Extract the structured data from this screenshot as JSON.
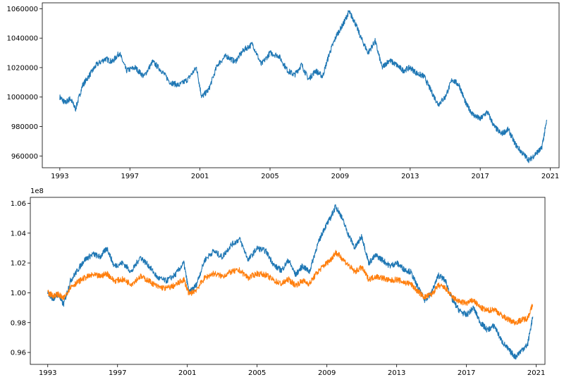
{
  "chart_data": [
    {
      "type": "line",
      "title": "",
      "xlabel": "",
      "ylabel": "",
      "x_ticks": [
        "1993",
        "1997",
        "2001",
        "2005",
        "2009",
        "2013",
        "2017",
        "2021"
      ],
      "y_ticks": [
        "960000",
        "980000",
        "1000000",
        "1020000",
        "1040000",
        "1060000"
      ],
      "xlim": [
        1992.0,
        2021.5
      ],
      "ylim": [
        952000,
        1064000
      ],
      "grid": false,
      "series": [
        {
          "color": "#1f77b4",
          "x": [
            1993.0,
            1993.3,
            1993.6,
            1993.9,
            1994.3,
            1994.7,
            1995.1,
            1995.6,
            1996.0,
            1996.4,
            1996.8,
            1997.3,
            1997.8,
            1998.3,
            1998.8,
            1999.3,
            1999.8,
            2000.3,
            2000.8,
            2001.1,
            2001.5,
            2002.0,
            2002.5,
            2003.0,
            2003.5,
            2004.0,
            2004.5,
            2005.0,
            2005.5,
            2006.0,
            2006.4,
            2006.8,
            2007.2,
            2007.6,
            2008.0,
            2008.4,
            2008.8,
            2009.2,
            2009.5,
            2009.8,
            2010.2,
            2010.6,
            2011.0,
            2011.4,
            2011.8,
            2012.2,
            2012.6,
            2013.0,
            2013.4,
            2013.8,
            2014.2,
            2014.6,
            2015.0,
            2015.4,
            2015.8,
            2016.2,
            2016.6,
            2017.0,
            2017.4,
            2017.8,
            2018.2,
            2018.6,
            2019.0,
            2019.4,
            2019.8,
            2020.2,
            2020.5,
            2020.8
          ],
          "y": [
            1000000,
            996000,
            999000,
            992000,
            1008000,
            1015000,
            1022000,
            1026000,
            1024000,
            1030000,
            1018000,
            1020000,
            1014000,
            1024000,
            1018000,
            1010000,
            1008000,
            1012000,
            1020000,
            1000000,
            1005000,
            1022000,
            1028000,
            1024000,
            1032000,
            1036000,
            1022000,
            1030000,
            1028000,
            1018000,
            1015000,
            1022000,
            1012000,
            1018000,
            1014000,
            1030000,
            1042000,
            1050000,
            1058000,
            1052000,
            1040000,
            1030000,
            1038000,
            1020000,
            1025000,
            1022000,
            1018000,
            1020000,
            1016000,
            1014000,
            1004000,
            995000,
            1000000,
            1012000,
            1008000,
            995000,
            988000,
            985000,
            990000,
            980000,
            975000,
            978000,
            968000,
            962000,
            957000,
            962000,
            965000,
            984000
          ]
        }
      ]
    },
    {
      "type": "line",
      "title": "",
      "xlabel": "",
      "ylabel": "",
      "y_offset_label": "1e8",
      "x_ticks": [
        "1993",
        "1997",
        "2001",
        "2005",
        "2009",
        "2013",
        "2017",
        "2021"
      ],
      "y_ticks": [
        "0.96",
        "0.98",
        "1.00",
        "1.02",
        "1.04",
        "1.06"
      ],
      "xlim": [
        1992.0,
        2021.5
      ],
      "ylim": [
        0.952,
        1.064
      ],
      "grid": false,
      "series": [
        {
          "color": "#1f77b4",
          "x": [
            1993.0,
            1993.3,
            1993.6,
            1993.9,
            1994.3,
            1994.7,
            1995.1,
            1995.6,
            1996.0,
            1996.4,
            1996.8,
            1997.3,
            1997.8,
            1998.3,
            1998.8,
            1999.3,
            1999.8,
            2000.3,
            2000.8,
            2001.1,
            2001.5,
            2002.0,
            2002.5,
            2003.0,
            2003.5,
            2004.0,
            2004.5,
            2005.0,
            2005.5,
            2006.0,
            2006.4,
            2006.8,
            2007.2,
            2007.6,
            2008.0,
            2008.4,
            2008.8,
            2009.2,
            2009.5,
            2009.8,
            2010.2,
            2010.6,
            2011.0,
            2011.4,
            2011.8,
            2012.2,
            2012.6,
            2013.0,
            2013.4,
            2013.8,
            2014.2,
            2014.6,
            2015.0,
            2015.4,
            2015.8,
            2016.2,
            2016.6,
            2017.0,
            2017.4,
            2017.8,
            2018.2,
            2018.6,
            2019.0,
            2019.4,
            2019.8,
            2020.2,
            2020.5,
            2020.8
          ],
          "y": [
            1.0,
            0.996,
            0.999,
            0.992,
            1.008,
            1.015,
            1.022,
            1.026,
            1.024,
            1.03,
            1.018,
            1.02,
            1.014,
            1.024,
            1.018,
            1.01,
            1.008,
            1.012,
            1.02,
            1.0,
            1.005,
            1.022,
            1.028,
            1.024,
            1.032,
            1.036,
            1.022,
            1.03,
            1.028,
            1.018,
            1.015,
            1.022,
            1.012,
            1.018,
            1.014,
            1.03,
            1.042,
            1.05,
            1.058,
            1.052,
            1.04,
            1.03,
            1.038,
            1.02,
            1.025,
            1.022,
            1.018,
            1.02,
            1.016,
            1.014,
            1.004,
            0.995,
            1.0,
            1.012,
            1.008,
            0.995,
            0.988,
            0.985,
            0.99,
            0.98,
            0.975,
            0.978,
            0.968,
            0.962,
            0.957,
            0.962,
            0.965,
            0.984
          ]
        },
        {
          "color": "#ff7f0e",
          "x": [
            1993.0,
            1993.3,
            1993.6,
            1993.9,
            1994.3,
            1994.7,
            1995.1,
            1995.6,
            1996.0,
            1996.4,
            1996.8,
            1997.3,
            1997.8,
            1998.3,
            1998.8,
            1999.3,
            1999.8,
            2000.3,
            2000.8,
            2001.1,
            2001.5,
            2002.0,
            2002.5,
            2003.0,
            2003.5,
            2004.0,
            2004.5,
            2005.0,
            2005.5,
            2006.0,
            2006.4,
            2006.8,
            2007.2,
            2007.6,
            2008.0,
            2008.4,
            2008.8,
            2009.2,
            2009.5,
            2009.8,
            2010.2,
            2010.6,
            2011.0,
            2011.4,
            2011.8,
            2012.2,
            2012.6,
            2013.0,
            2013.4,
            2013.8,
            2014.2,
            2014.6,
            2015.0,
            2015.4,
            2015.8,
            2016.2,
            2016.6,
            2017.0,
            2017.4,
            2017.8,
            2018.2,
            2018.6,
            2019.0,
            2019.4,
            2019.8,
            2020.2,
            2020.5,
            2020.8
          ],
          "y": [
            1.0,
            0.998,
            0.999,
            0.996,
            1.004,
            1.007,
            1.01,
            1.012,
            1.011,
            1.013,
            1.008,
            1.009,
            1.006,
            1.011,
            1.008,
            1.004,
            1.003,
            1.005,
            1.009,
            0.999,
            1.002,
            1.01,
            1.013,
            1.011,
            1.014,
            1.015,
            1.01,
            1.013,
            1.012,
            1.008,
            1.006,
            1.009,
            1.005,
            1.008,
            1.006,
            1.013,
            1.018,
            1.022,
            1.027,
            1.024,
            1.019,
            1.014,
            1.017,
            1.009,
            1.011,
            1.01,
            1.008,
            1.009,
            1.007,
            1.006,
            1.001,
            0.997,
            0.999,
            1.005,
            1.003,
            0.997,
            0.994,
            0.993,
            0.995,
            0.99,
            0.988,
            0.989,
            0.985,
            0.982,
            0.98,
            0.982,
            0.983,
            0.992
          ]
        }
      ]
    }
  ]
}
